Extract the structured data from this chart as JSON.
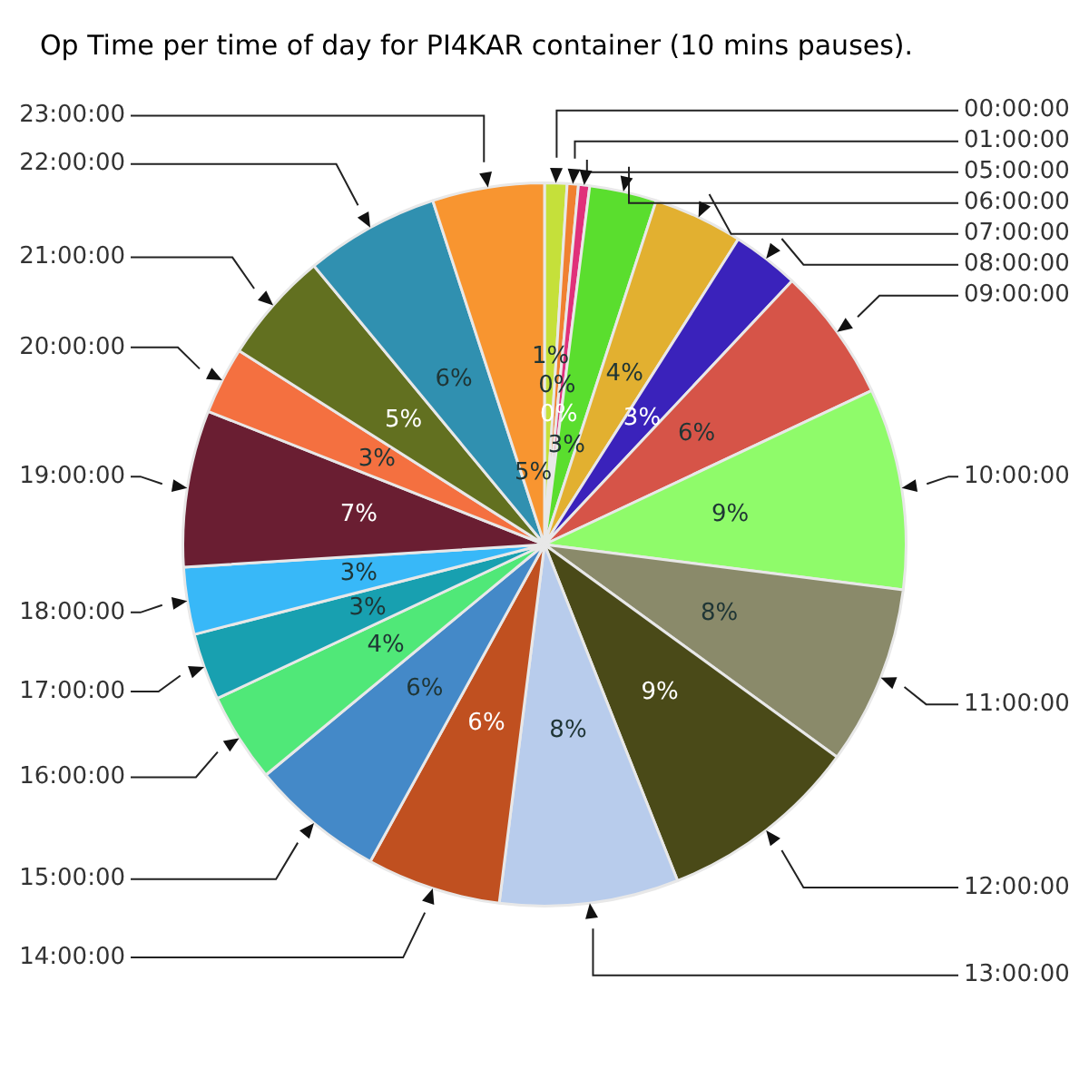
{
  "chart_data": {
    "type": "pie",
    "title": "Op Time per time of day for PI4KAR container (10 mins pauses).",
    "categories": [
      "00:00:00",
      "01:00:00",
      "05:00:00",
      "06:00:00",
      "07:00:00",
      "08:00:00",
      "09:00:00",
      "10:00:00",
      "11:00:00",
      "12:00:00",
      "13:00:00",
      "14:00:00",
      "15:00:00",
      "16:00:00",
      "17:00:00",
      "18:00:00",
      "19:00:00",
      "20:00:00",
      "21:00:00",
      "22:00:00",
      "23:00:00"
    ],
    "values": [
      1,
      0.5,
      0.5,
      3,
      4,
      3,
      6,
      9,
      8,
      9,
      8,
      6,
      6,
      4,
      3,
      3,
      7,
      3,
      5,
      6,
      5
    ],
    "value_labels": [
      "1%",
      "0%",
      "0%",
      "3%",
      "4%",
      "3%",
      "6%",
      "9%",
      "8%",
      "9%",
      "8%",
      "6%",
      "6%",
      "4%",
      "3%",
      "3%",
      "7%",
      "3%",
      "5%",
      "6%",
      "5%"
    ],
    "colors": [
      "#c5e03a",
      "#f08030",
      "#e0307a",
      "#5ade2e",
      "#e2b030",
      "#3a22bb",
      "#d65448",
      "#8ffb6a",
      "#8a8a6a",
      "#4a4a18",
      "#b8ccec",
      "#c05020",
      "#4489c8",
      "#50e878",
      "#18a0b0",
      "#38b8f8",
      "#6a1e32",
      "#f47040",
      "#627020",
      "#3090b0",
      "#f89530"
    ],
    "legend": false
  }
}
